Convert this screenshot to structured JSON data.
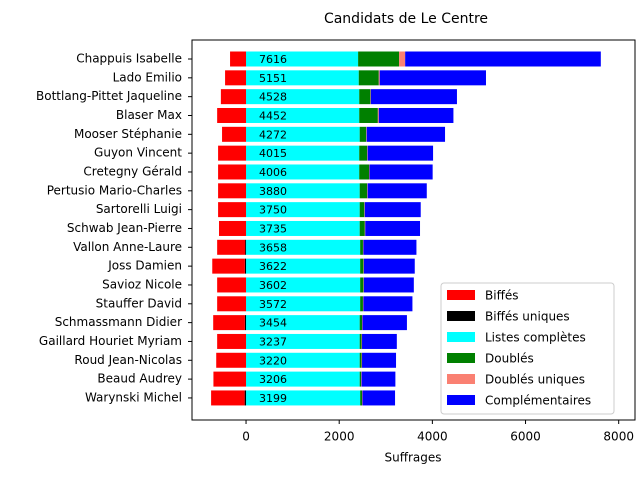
{
  "chart_data": {
    "type": "stacked-barh",
    "title": "Candidats de Le Centre",
    "xlabel": "Suffrages",
    "categories": [
      "Chappuis Isabelle",
      "Lado Emilio",
      "Bottlang-Pittet Jaqueline",
      "Blaser Max",
      "Mooser Stéphanie",
      "Guyon Vincent",
      "Cretegny Gérald",
      "Pertusio Mario-Charles",
      "Sartorelli Luigi",
      "Schwab Jean-Pierre",
      "Vallon Anne-Laure",
      "Joss Damien",
      "Savioz Nicole",
      "Stauffer David",
      "Schmassmann Didier",
      "Gaillard Houriet Myriam",
      "Roud Jean-Nicolas",
      "Beaud Audrey",
      "Warynski Michel"
    ],
    "series": [
      {
        "name": "Biffés",
        "color": "#ff0000",
        "values": [
          -343,
          -450,
          -540,
          -620,
          -515,
          -600,
          -600,
          -600,
          -600,
          -580,
          -600,
          -700,
          -620,
          -620,
          -680,
          -620,
          -640,
          -700,
          -720
        ]
      },
      {
        "name": "Biffés uniques",
        "color": "#000000",
        "values": [
          0,
          0,
          0,
          0,
          0,
          0,
          0,
          0,
          0,
          0,
          -20,
          -25,
          0,
          0,
          -25,
          0,
          0,
          0,
          -30
        ]
      },
      {
        "name": "Listes complètes",
        "color": "#00ffff",
        "values": [
          2406,
          2420,
          2430,
          2430,
          2440,
          2430,
          2430,
          2440,
          2440,
          2440,
          2450,
          2450,
          2450,
          2450,
          2440,
          2440,
          2440,
          2440,
          2450
        ]
      },
      {
        "name": "Doublés",
        "color": "#008000",
        "values": [
          880,
          430,
          240,
          400,
          140,
          170,
          210,
          160,
          100,
          110,
          60,
          70,
          70,
          60,
          50,
          40,
          40,
          30,
          40
        ]
      },
      {
        "name": "Doublés uniques",
        "color": "#fa8072",
        "values": [
          130,
          20,
          10,
          20,
          10,
          10,
          10,
          10,
          10,
          10,
          10,
          10,
          10,
          10,
          10,
          10,
          10,
          10,
          10
        ]
      },
      {
        "name": "Complémentaires",
        "color": "#0000ff",
        "values": [
          4200,
          2281,
          1848,
          1602,
          1682,
          1405,
          1356,
          1270,
          1200,
          1175,
          1138,
          1092,
          1072,
          1052,
          954,
          747,
          730,
          726,
          699
        ]
      }
    ],
    "totals": [
      7616,
      5151,
      4528,
      4452,
      4272,
      4015,
      4006,
      3880,
      3750,
      3735,
      3658,
      3622,
      3602,
      3572,
      3454,
      3237,
      3220,
      3206,
      3199
    ],
    "xlim": [
      -1160,
      8350
    ],
    "xticks": [
      0,
      2000,
      4000,
      6000,
      8000
    ],
    "legend": "lower right"
  }
}
